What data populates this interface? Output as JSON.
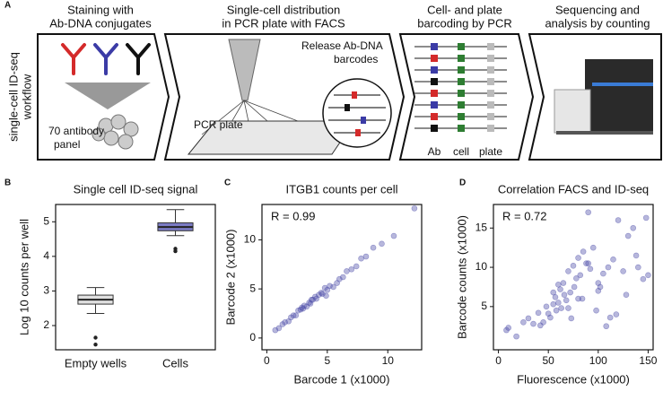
{
  "workflow": {
    "label": "A",
    "side_title": [
      "single-cell ID-seq",
      "workflow"
    ],
    "steps": [
      {
        "title": [
          "Staining with",
          "Ab-DNA conjugates"
        ],
        "note": [
          "70 antibody",
          "panel"
        ]
      },
      {
        "title": [
          "Single-cell distribution",
          "in PCR plate with FACS"
        ],
        "note": [
          "PCR plate"
        ],
        "zoom_note": [
          "Release Ab-DNA",
          "barcodes"
        ]
      },
      {
        "title": [
          "Cell- and plate",
          "barcoding by PCR"
        ],
        "parts": [
          "Ab",
          "cell",
          "plate"
        ]
      },
      {
        "title": [
          "Sequencing and",
          "analysis by counting"
        ]
      }
    ]
  },
  "chart_data": [
    {
      "type": "box",
      "label": "B",
      "title": "Single cell ID-seq signal",
      "ylabel": "Log 10 counts per well",
      "categories": [
        "Empty wells",
        "Cells"
      ],
      "boxes": [
        {
          "color": "#e0e0e0",
          "whisker_low": 2.35,
          "q1": 2.62,
          "median": 2.75,
          "q3": 2.88,
          "whisker_high": 3.1,
          "outliers": [
            1.65,
            1.45
          ]
        },
        {
          "color": "#7b7bc4",
          "whisker_low": 4.6,
          "q1": 4.74,
          "median": 4.85,
          "q3": 4.97,
          "whisker_high": 5.35,
          "outliers": [
            4.22,
            4.15
          ]
        }
      ],
      "ylim": [
        1.3,
        5.5
      ],
      "yticks": [
        2,
        3,
        4,
        5
      ]
    },
    {
      "type": "scatter",
      "label": "C",
      "title": "ITGB1 counts per cell",
      "xlabel": "Barcode 1 (x1000)",
      "ylabel": "Barcode 2 (x1000)",
      "annotation": "R = 0.99",
      "color": "#4a4aa8",
      "x": [
        0.7,
        1.0,
        1.3,
        1.5,
        1.8,
        2.0,
        2.2,
        2.4,
        2.6,
        2.8,
        3.0,
        3.1,
        3.3,
        3.5,
        3.6,
        3.8,
        4.0,
        4.1,
        4.3,
        4.5,
        4.6,
        4.8,
        5.0,
        5.2,
        5.5,
        5.8,
        6.0,
        6.3,
        6.6,
        7.0,
        7.4,
        7.8,
        8.2,
        8.8,
        9.5,
        10.5,
        12.2,
        4.9,
        3.7,
        2.9
      ],
      "values": [
        0.8,
        1.0,
        1.4,
        1.6,
        1.7,
        2.1,
        2.3,
        2.3,
        2.8,
        2.9,
        3.0,
        3.3,
        3.2,
        3.6,
        3.5,
        3.9,
        4.2,
        4.0,
        4.4,
        4.6,
        4.5,
        5.1,
        4.9,
        5.3,
        5.2,
        5.6,
        6.0,
        6.2,
        6.8,
        7.0,
        7.3,
        8.1,
        8.3,
        9.2,
        9.6,
        10.4,
        13.2,
        4.3,
        3.9,
        3.1
      ],
      "xlim": [
        -0.4,
        12.8
      ],
      "xticks": [
        0,
        5,
        10
      ],
      "ylim": [
        -1.2,
        13.6
      ],
      "yticks": [
        0,
        5,
        10
      ]
    },
    {
      "type": "scatter",
      "label": "D",
      "title": "Correlation FACS and ID-seq",
      "xlabel": "Fluorescence (x1000)",
      "ylabel": "Barcode counts (x1000)",
      "annotation": "R = 0.72",
      "color": "#4a4aa8",
      "x": [
        10,
        8,
        18,
        25,
        30,
        35,
        40,
        42,
        45,
        48,
        50,
        52,
        55,
        57,
        58,
        60,
        62,
        63,
        65,
        66,
        68,
        70,
        72,
        73,
        75,
        76,
        78,
        80,
        82,
        84,
        85,
        88,
        90,
        92,
        95,
        98,
        100,
        102,
        105,
        108,
        110,
        112,
        115,
        118,
        120,
        125,
        128,
        130,
        135,
        138,
        140,
        145,
        148,
        150,
        60,
        70,
        80,
        90,
        100,
        55
      ],
      "values": [
        2.3,
        2.0,
        1.2,
        3.0,
        3.5,
        2.8,
        4.2,
        2.6,
        3.0,
        5.0,
        4.1,
        3.6,
        5.3,
        6.2,
        4.5,
        5.5,
        7.2,
        4.8,
        8.0,
        6.5,
        5.8,
        9.5,
        6.8,
        3.5,
        10.2,
        7.5,
        8.6,
        11.2,
        9.0,
        6.0,
        12.0,
        10.5,
        17.0,
        9.8,
        12.5,
        4.5,
        8.0,
        7.5,
        9.2,
        2.5,
        10.0,
        3.6,
        11.0,
        4.0,
        16.0,
        9.5,
        6.5,
        14.0,
        15.0,
        11.5,
        10.0,
        8.5,
        16.3,
        9.0,
        7.8,
        4.8,
        6.0,
        10.5,
        7.0,
        6.8
      ],
      "xlim": [
        -5,
        155
      ],
      "xticks": [
        0,
        50,
        100,
        150
      ],
      "ylim": [
        -0.5,
        18
      ],
      "yticks": [
        5,
        10,
        15
      ]
    }
  ]
}
